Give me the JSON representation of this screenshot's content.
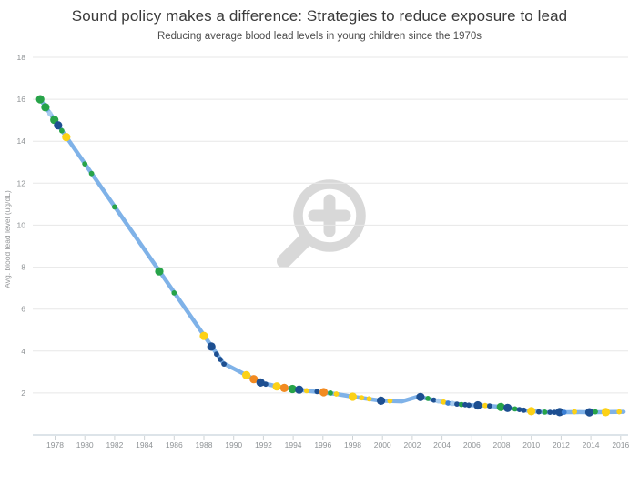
{
  "header": {
    "title": "Sound policy makes a difference: Strategies to reduce exposure to lead",
    "subtitle": "Reducing average blood lead levels in young children since the 1970s"
  },
  "watermark": {
    "icon": "zoom-in-magnifier-plus"
  },
  "chart_data": {
    "type": "line",
    "title": "Sound policy makes a difference: Strategies to reduce exposure to lead",
    "subtitle": "Reducing average blood lead levels in young children since the 1970s",
    "xlabel": "",
    "ylabel": "Avg. blood lead level (ug/dL)",
    "xlim": [
      1976.5,
      2016.5
    ],
    "ylim": [
      0,
      18
    ],
    "grid": true,
    "legend": "none",
    "xticks": [
      1978,
      1980,
      1982,
      1984,
      1986,
      1988,
      1990,
      1992,
      1994,
      1996,
      1998,
      2000,
      2002,
      2004,
      2006,
      2008,
      2010,
      2012,
      2014,
      2016
    ],
    "yticks": [
      2,
      4,
      6,
      8,
      10,
      12,
      14,
      16,
      18
    ],
    "line": {
      "x": [
        1977,
        1989.3,
        1990.85,
        1991.8,
        1993,
        1995,
        1996.9,
        1998,
        1999.9,
        2001.3,
        2002.4,
        2003.4,
        2004.4,
        2005.8,
        2006.9,
        2008,
        2009.5,
        2010,
        2011,
        2012,
        2013,
        2014,
        2015,
        2016.2
      ],
      "y": [
        16.0,
        3.42,
        2.85,
        2.5,
        2.3,
        2.1,
        1.95,
        1.82,
        1.63,
        1.6,
        1.83,
        1.67,
        1.52,
        1.42,
        1.4,
        1.33,
        1.18,
        1.13,
        1.08,
        1.08,
        1.09,
        1.08,
        1.09,
        1.1
      ]
    },
    "marker_fields": [
      "year",
      "value",
      "color",
      "size"
    ],
    "marker_sizes": {
      "L": 4.6,
      "S": 2.9
    },
    "markers": [
      [
        1977.0,
        16.0,
        "green",
        "L"
      ],
      [
        1977.35,
        15.62,
        "green",
        "L"
      ],
      [
        1977.65,
        15.32,
        "lightblue",
        "S"
      ],
      [
        1977.95,
        15.02,
        "green",
        "L"
      ],
      [
        1978.2,
        14.76,
        "navy",
        "L"
      ],
      [
        1978.45,
        14.5,
        "green",
        "S"
      ],
      [
        1978.75,
        14.2,
        "yellow",
        "L"
      ],
      [
        1980.0,
        12.92,
        "green",
        "S"
      ],
      [
        1980.45,
        12.46,
        "green",
        "S"
      ],
      [
        1982.0,
        10.87,
        "green",
        "S"
      ],
      [
        1985.0,
        7.8,
        "green",
        "L"
      ],
      [
        1986.0,
        6.77,
        "green",
        "S"
      ],
      [
        1988.0,
        4.72,
        "yellow",
        "L"
      ],
      [
        1988.5,
        4.21,
        "navy",
        "L"
      ],
      [
        1988.85,
        3.85,
        "navy",
        "S"
      ],
      [
        1989.1,
        3.6,
        "navy",
        "S"
      ],
      [
        1989.35,
        3.38,
        "navy",
        "S"
      ],
      [
        1990.85,
        2.85,
        "yellow",
        "L"
      ],
      [
        1991.35,
        2.66,
        "orange",
        "L"
      ],
      [
        1991.8,
        2.5,
        "navy",
        "L"
      ],
      [
        1992.15,
        2.42,
        "navy",
        "S"
      ],
      [
        1992.9,
        2.31,
        "yellow",
        "L"
      ],
      [
        1993.4,
        2.24,
        "orange",
        "L"
      ],
      [
        1993.95,
        2.19,
        "green",
        "L"
      ],
      [
        1994.4,
        2.16,
        "navy",
        "L"
      ],
      [
        1994.9,
        2.11,
        "yellow",
        "S"
      ],
      [
        1995.6,
        2.07,
        "navy",
        "S"
      ],
      [
        1996.05,
        2.04,
        "orange",
        "L"
      ],
      [
        1996.5,
        2.0,
        "green",
        "S"
      ],
      [
        1996.9,
        1.95,
        "yellow",
        "S"
      ],
      [
        1998.0,
        1.82,
        "yellow",
        "L"
      ],
      [
        1998.6,
        1.77,
        "yellow",
        "S"
      ],
      [
        1999.1,
        1.72,
        "yellow",
        "S"
      ],
      [
        1999.9,
        1.63,
        "navy",
        "L"
      ],
      [
        2000.5,
        1.62,
        "yellow",
        "S"
      ],
      [
        2002.55,
        1.81,
        "navy",
        "L"
      ],
      [
        2003.05,
        1.74,
        "green",
        "S"
      ],
      [
        2003.45,
        1.66,
        "navy",
        "S"
      ],
      [
        2003.75,
        1.62,
        "lightblue",
        "S"
      ],
      [
        2004.1,
        1.57,
        "yellow",
        "S"
      ],
      [
        2004.4,
        1.52,
        "blue",
        "S"
      ],
      [
        2004.7,
        1.5,
        "lightblue",
        "S"
      ],
      [
        2005.0,
        1.47,
        "navy",
        "S"
      ],
      [
        2005.3,
        1.45,
        "green",
        "S"
      ],
      [
        2005.55,
        1.44,
        "navy",
        "S"
      ],
      [
        2005.8,
        1.42,
        "navy",
        "S"
      ],
      [
        2006.4,
        1.41,
        "navy",
        "L"
      ],
      [
        2006.9,
        1.4,
        "yellow",
        "S"
      ],
      [
        2007.2,
        1.38,
        "navy",
        "S"
      ],
      [
        2007.95,
        1.33,
        "green",
        "L"
      ],
      [
        2008.4,
        1.29,
        "navy",
        "L"
      ],
      [
        2008.9,
        1.24,
        "green",
        "S"
      ],
      [
        2009.2,
        1.21,
        "navy",
        "S"
      ],
      [
        2009.5,
        1.18,
        "navy",
        "S"
      ],
      [
        2010.0,
        1.13,
        "yellow",
        "L"
      ],
      [
        2010.5,
        1.1,
        "navy",
        "S"
      ],
      [
        2010.9,
        1.09,
        "green",
        "S"
      ],
      [
        2011.25,
        1.08,
        "navy",
        "S"
      ],
      [
        2011.55,
        1.08,
        "navy",
        "S"
      ],
      [
        2011.9,
        1.09,
        "navy",
        "L"
      ],
      [
        2012.2,
        1.08,
        "blue",
        "S"
      ],
      [
        2012.9,
        1.1,
        "yellow",
        "S"
      ],
      [
        2013.9,
        1.08,
        "navy",
        "L"
      ],
      [
        2014.3,
        1.1,
        "green",
        "S"
      ],
      [
        2015.0,
        1.09,
        "yellow",
        "L"
      ],
      [
        2015.9,
        1.1,
        "yellow",
        "S"
      ]
    ],
    "palette": {
      "line": "#7fb2e8",
      "navy": "#1d4f91",
      "green": "#27a349",
      "yellow": "#fcd116",
      "orange": "#f28a20",
      "lightblue": "#a7cbee",
      "blue": "#3a7fd5",
      "grid": "#e7e7e7",
      "axis": "#dde4e9",
      "tickmark": "#ced3d6",
      "watermark": "#d8d8d8"
    }
  }
}
